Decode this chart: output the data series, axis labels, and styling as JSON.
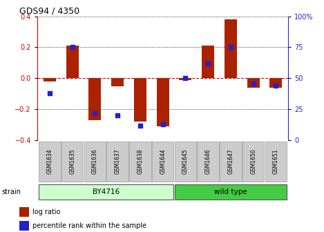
{
  "title": "GDS94 / 4350",
  "samples": [
    "GSM1634",
    "GSM1635",
    "GSM1636",
    "GSM1637",
    "GSM1638",
    "GSM1644",
    "GSM1645",
    "GSM1646",
    "GSM1647",
    "GSM1650",
    "GSM1651"
  ],
  "log_ratio": [
    -0.02,
    0.21,
    -0.27,
    -0.05,
    -0.28,
    -0.31,
    -0.01,
    0.21,
    0.38,
    -0.06,
    -0.06
  ],
  "percentile_rank": [
    38,
    75,
    22,
    20,
    12,
    13,
    50,
    62,
    75,
    46,
    44
  ],
  "strain_groups": [
    {
      "label": "BY4716",
      "start": 0,
      "end": 5,
      "color": "#ccffcc"
    },
    {
      "label": "wild type",
      "start": 6,
      "end": 10,
      "color": "#44cc44"
    }
  ],
  "bar_color": "#aa2200",
  "dot_color": "#2222cc",
  "ylim": [
    -0.4,
    0.4
  ],
  "right_ylim": [
    0,
    100
  ],
  "right_yticks": [
    0,
    25,
    50,
    75,
    100
  ],
  "left_yticks": [
    -0.4,
    -0.2,
    0.0,
    0.2,
    0.4
  ],
  "hline_color": "#cc0000",
  "dot_color_legend": "#2222cc",
  "bar_color_legend": "#aa2200",
  "bar_width": 0.55,
  "dot_size": 22,
  "figsize": [
    4.69,
    3.36
  ],
  "dpi": 100
}
